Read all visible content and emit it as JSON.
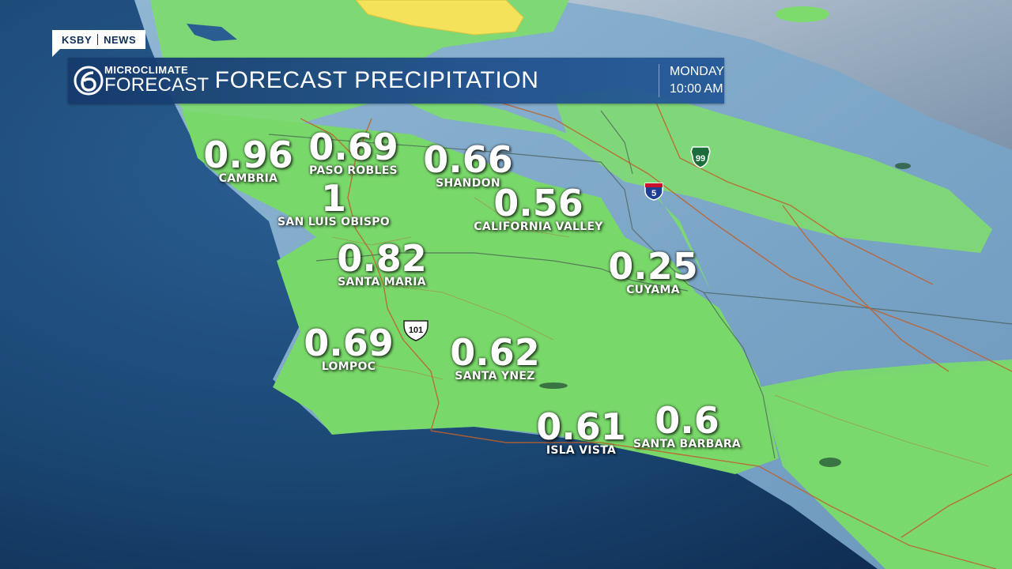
{
  "header": {
    "station": "KSBY",
    "network": "NEWS",
    "logo_top": "MICROCLIMATE",
    "logo_bottom": "FORECAST",
    "title": "FORECAST PRECIPITATION",
    "day": "MONDAY",
    "time": "10:00 AM"
  },
  "highways": {
    "hwy101": "101",
    "i5": "5",
    "ca99": "99"
  },
  "locations": [
    {
      "city": "CAMBRIA",
      "value": "0.96"
    },
    {
      "city": "PASO ROBLES",
      "value": "0.69"
    },
    {
      "city": "SHANDON",
      "value": "0.66"
    },
    {
      "city": "SAN LUIS OBISPO",
      "value": "1"
    },
    {
      "city": "CALIFORNIA VALLEY",
      "value": "0.56"
    },
    {
      "city": "SANTA MARIA",
      "value": "0.82"
    },
    {
      "city": "CUYAMA",
      "value": "0.25"
    },
    {
      "city": "LOMPOC",
      "value": "0.69"
    },
    {
      "city": "SANTA YNEZ",
      "value": "0.62"
    },
    {
      "city": "ISLA VISTA",
      "value": "0.61"
    },
    {
      "city": "SANTA BARBARA",
      "value": "0.6"
    }
  ],
  "colors": {
    "ocean": "#1a4672",
    "rain_light": "#7ddb6e",
    "rain_heavy": "#f4e25a",
    "dry_land": "#7aa7c9",
    "banner": "#1f4e8a"
  }
}
